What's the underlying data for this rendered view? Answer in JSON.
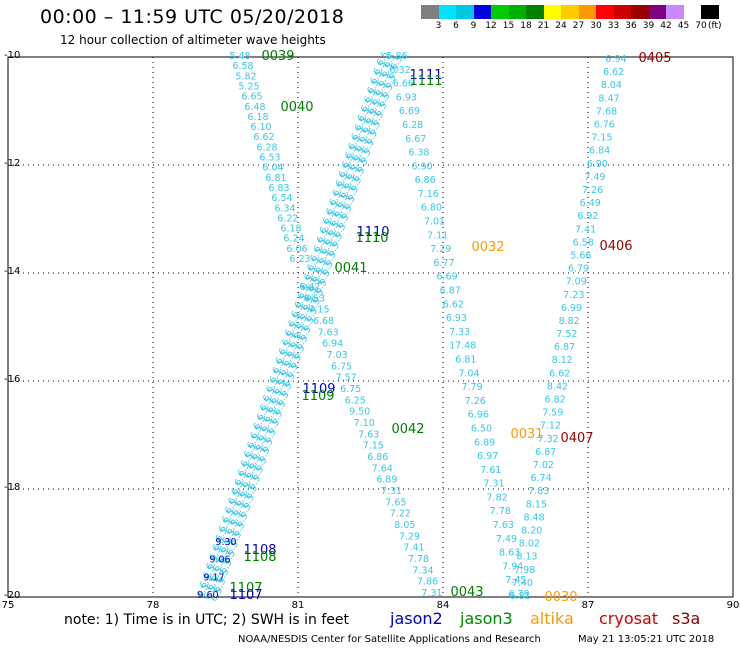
{
  "header": {
    "title": "00:00 – 11:59 UTC 05/20/2018",
    "subtitle": "12 hour collection of altimeter wave heights"
  },
  "legend": {
    "labels": [
      "3",
      "6",
      "9",
      "12",
      "15",
      "18",
      "21",
      "24",
      "27",
      "30",
      "33",
      "36",
      "39",
      "42",
      "45",
      "70"
    ],
    "unit": "(ft)",
    "colors": [
      "#808080",
      "#00e0ff",
      "#00c8e0",
      "#0000e0",
      "#00cc00",
      "#00b000",
      "#008000",
      "#ffff00",
      "#ffcc00",
      "#ff9900",
      "#ff0000",
      "#cc0000",
      "#990000",
      "#800080",
      "#cc88ff",
      "#ffffff",
      "#000000"
    ]
  },
  "axes": {
    "y_labels": [
      "-10",
      "-12",
      "-14",
      "-16",
      "-18",
      "-20"
    ],
    "x_labels": [
      "75",
      "78",
      "81",
      "84",
      "87",
      "90"
    ]
  },
  "footer": {
    "note": "note: 1) Time is in UTC; 2) SWH is in feet",
    "credit": "NOAA/NESDIS Center for Satellite Applications and Research",
    "date": "May 21 13:05:21 UTC 2018",
    "satellites": [
      {
        "name": "jason2",
        "color": "#0000cc"
      },
      {
        "name": "jason3",
        "color": "#008800"
      },
      {
        "name": "altika",
        "color": "#ff9900"
      },
      {
        "name": "cryosat",
        "color": "#cc0000"
      },
      {
        "name": "s3a",
        "color": "#880000"
      }
    ]
  },
  "map_data": {
    "time_labels": [
      {
        "text": "0039",
        "color": "#008000"
      },
      {
        "text": "0040",
        "color": "#008000"
      },
      {
        "text": "0041",
        "color": "#008000"
      },
      {
        "text": "0042",
        "color": "#008000"
      },
      {
        "text": "0043",
        "color": "#008000"
      },
      {
        "text": "1111",
        "color": "#0000cc"
      },
      {
        "text": "1111",
        "color": "#008000"
      },
      {
        "text": "1110",
        "color": "#0000cc"
      },
      {
        "text": "1110",
        "color": "#008000"
      },
      {
        "text": "1109",
        "color": "#0000cc"
      },
      {
        "text": "1109",
        "color": "#008000"
      },
      {
        "text": "1108",
        "color": "#0000cc"
      },
      {
        "text": "1108",
        "color": "#008000"
      },
      {
        "text": "1107",
        "color": "#008000"
      },
      {
        "text": "1107",
        "color": "#0000cc"
      },
      {
        "text": "0032",
        "color": "#ff9900"
      },
      {
        "text": "0031",
        "color": "#ff9900"
      },
      {
        "text": "0030",
        "color": "#ff9900"
      },
      {
        "text": "0405",
        "color": "#990000"
      },
      {
        "text": "0406",
        "color": "#990000"
      },
      {
        "text": "0407",
        "color": "#990000"
      }
    ],
    "track_a_values": [
      "5.48",
      "6.58",
      "5.82",
      "5.25",
      "6.65",
      "6.48",
      "6.18",
      "6.10",
      "6.62",
      "6.28",
      "6.53",
      "6.04",
      "6.81",
      "6.83",
      "6.54",
      "6.34",
      "6.22",
      "6.18",
      "6.24",
      "6.06",
      "6.23"
    ],
    "track_b_values": [
      "6.47",
      "6.53",
      "7.15",
      "6.68",
      "7.63",
      "6.94",
      "7.03",
      "6.75",
      "7.57",
      "6.75",
      "6.25",
      "9.50",
      "7.10",
      "7.63",
      "7.15",
      "6.86",
      "7.64",
      "6.89",
      "7.31",
      "7.65",
      "7.22",
      "8.05",
      "7.29",
      "7.41",
      "7.78",
      "7.34",
      "7.86",
      "7.31"
    ],
    "track_c_values": [
      "5.86",
      "6.32",
      "6.66",
      "6.93",
      "6.69",
      "6.28",
      "6.67",
      "6.38",
      "6.90",
      "6.86",
      "7.16",
      "6.80",
      "7.01",
      "7.11",
      "7.29",
      "6.77",
      "6.69",
      "6.87",
      "6.62",
      "6.93",
      "7.33",
      "17.48",
      "6.81",
      "7.04",
      "7.79",
      "7.26",
      "6.96",
      "6.50",
      "6.89",
      "6.97",
      "7.61",
      "7.31",
      "7.82",
      "7.78",
      "7.63",
      "7.49",
      "8.63",
      "7.94",
      "7.45",
      "6.79"
    ],
    "track_d_values": [
      "6.94",
      "6.62",
      "8.04",
      "8.47",
      "7.68",
      "6.76",
      "7.15",
      "6.84",
      "6.90",
      "7.49",
      "7.26",
      "6.49",
      "6.92",
      "7.41",
      "6.58",
      "5.66",
      "6.79",
      "7.09",
      "7.23",
      "6.99",
      "8.82",
      "7.52",
      "6.87",
      "8.12",
      "6.62",
      "8.42",
      "6.82",
      "7.59",
      "7.12",
      "7.32",
      "6.87",
      "7.02",
      "6.74",
      "7.83",
      "8.15",
      "8.48",
      "8.20",
      "8.02",
      "8.13",
      "7.98",
      "7.40",
      "6.81"
    ],
    "track_e_values": [
      "9.30",
      "9.06",
      "9.17",
      "9.60"
    ]
  }
}
